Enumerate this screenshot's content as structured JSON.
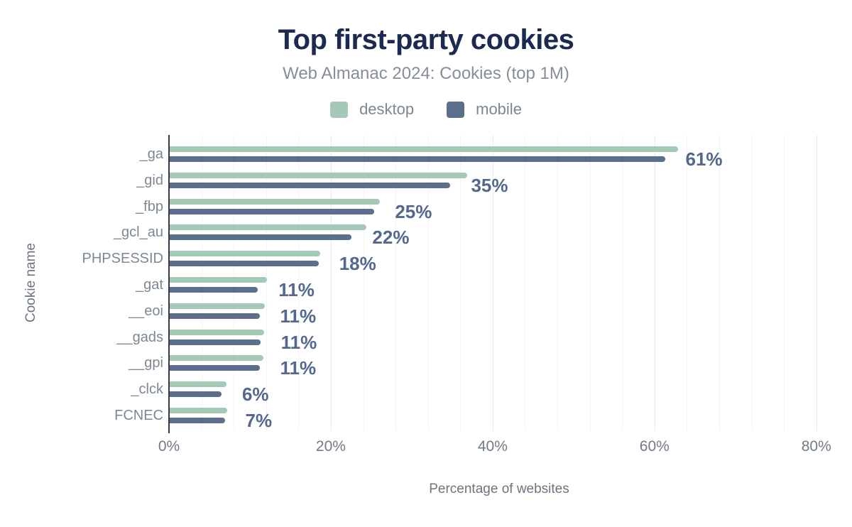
{
  "header": {
    "title": "Top first-party cookies",
    "subtitle": "Web Almanac 2024: Cookies (top 1M)"
  },
  "legend": [
    {
      "label": "desktop",
      "color": "#a4c9b6"
    },
    {
      "label": "mobile",
      "color": "#5b6e8c"
    }
  ],
  "axes": {
    "x_label": "Percentage of websites",
    "y_label": "Cookie name"
  },
  "chart_data": {
    "type": "bar",
    "orientation": "horizontal",
    "title": "Top first-party cookies",
    "subtitle": "Web Almanac 2024: Cookies (top 1M)",
    "categories": [
      "_ga",
      "_gid",
      "_fbp",
      "_gcl_au",
      "PHPSESSID",
      "_gat",
      "__eoi",
      "__gads",
      "__gpi",
      "_clck",
      "FCNEC"
    ],
    "series": [
      {
        "name": "desktop",
        "color": "#a4c9b6",
        "values": [
          62.8,
          36.8,
          26.0,
          24.3,
          18.6,
          12.0,
          11.8,
          11.7,
          11.6,
          7.0,
          7.1
        ]
      },
      {
        "name": "mobile",
        "color": "#5b6e8c",
        "values": [
          61.2,
          34.7,
          25.3,
          22.5,
          18.4,
          10.9,
          11.1,
          11.2,
          11.1,
          6.4,
          6.8
        ]
      }
    ],
    "value_labels": [
      "61%",
      "35%",
      "25%",
      "22%",
      "18%",
      "11%",
      "11%",
      "11%",
      "11%",
      "6%",
      "7%"
    ],
    "xlabel": "Percentage of websites",
    "ylabel": "Cookie name",
    "xlim": [
      0,
      81.6
    ],
    "x_ticks": [
      {
        "pct": 0,
        "label": "0%"
      },
      {
        "pct": 20,
        "label": "20%"
      },
      {
        "pct": 40,
        "label": "40%"
      },
      {
        "pct": 60,
        "label": "60%"
      },
      {
        "pct": 80,
        "label": "80%"
      }
    ],
    "grid": {
      "minor_step": 4,
      "major_step": 20,
      "max": 80
    },
    "legend_position": "top"
  }
}
